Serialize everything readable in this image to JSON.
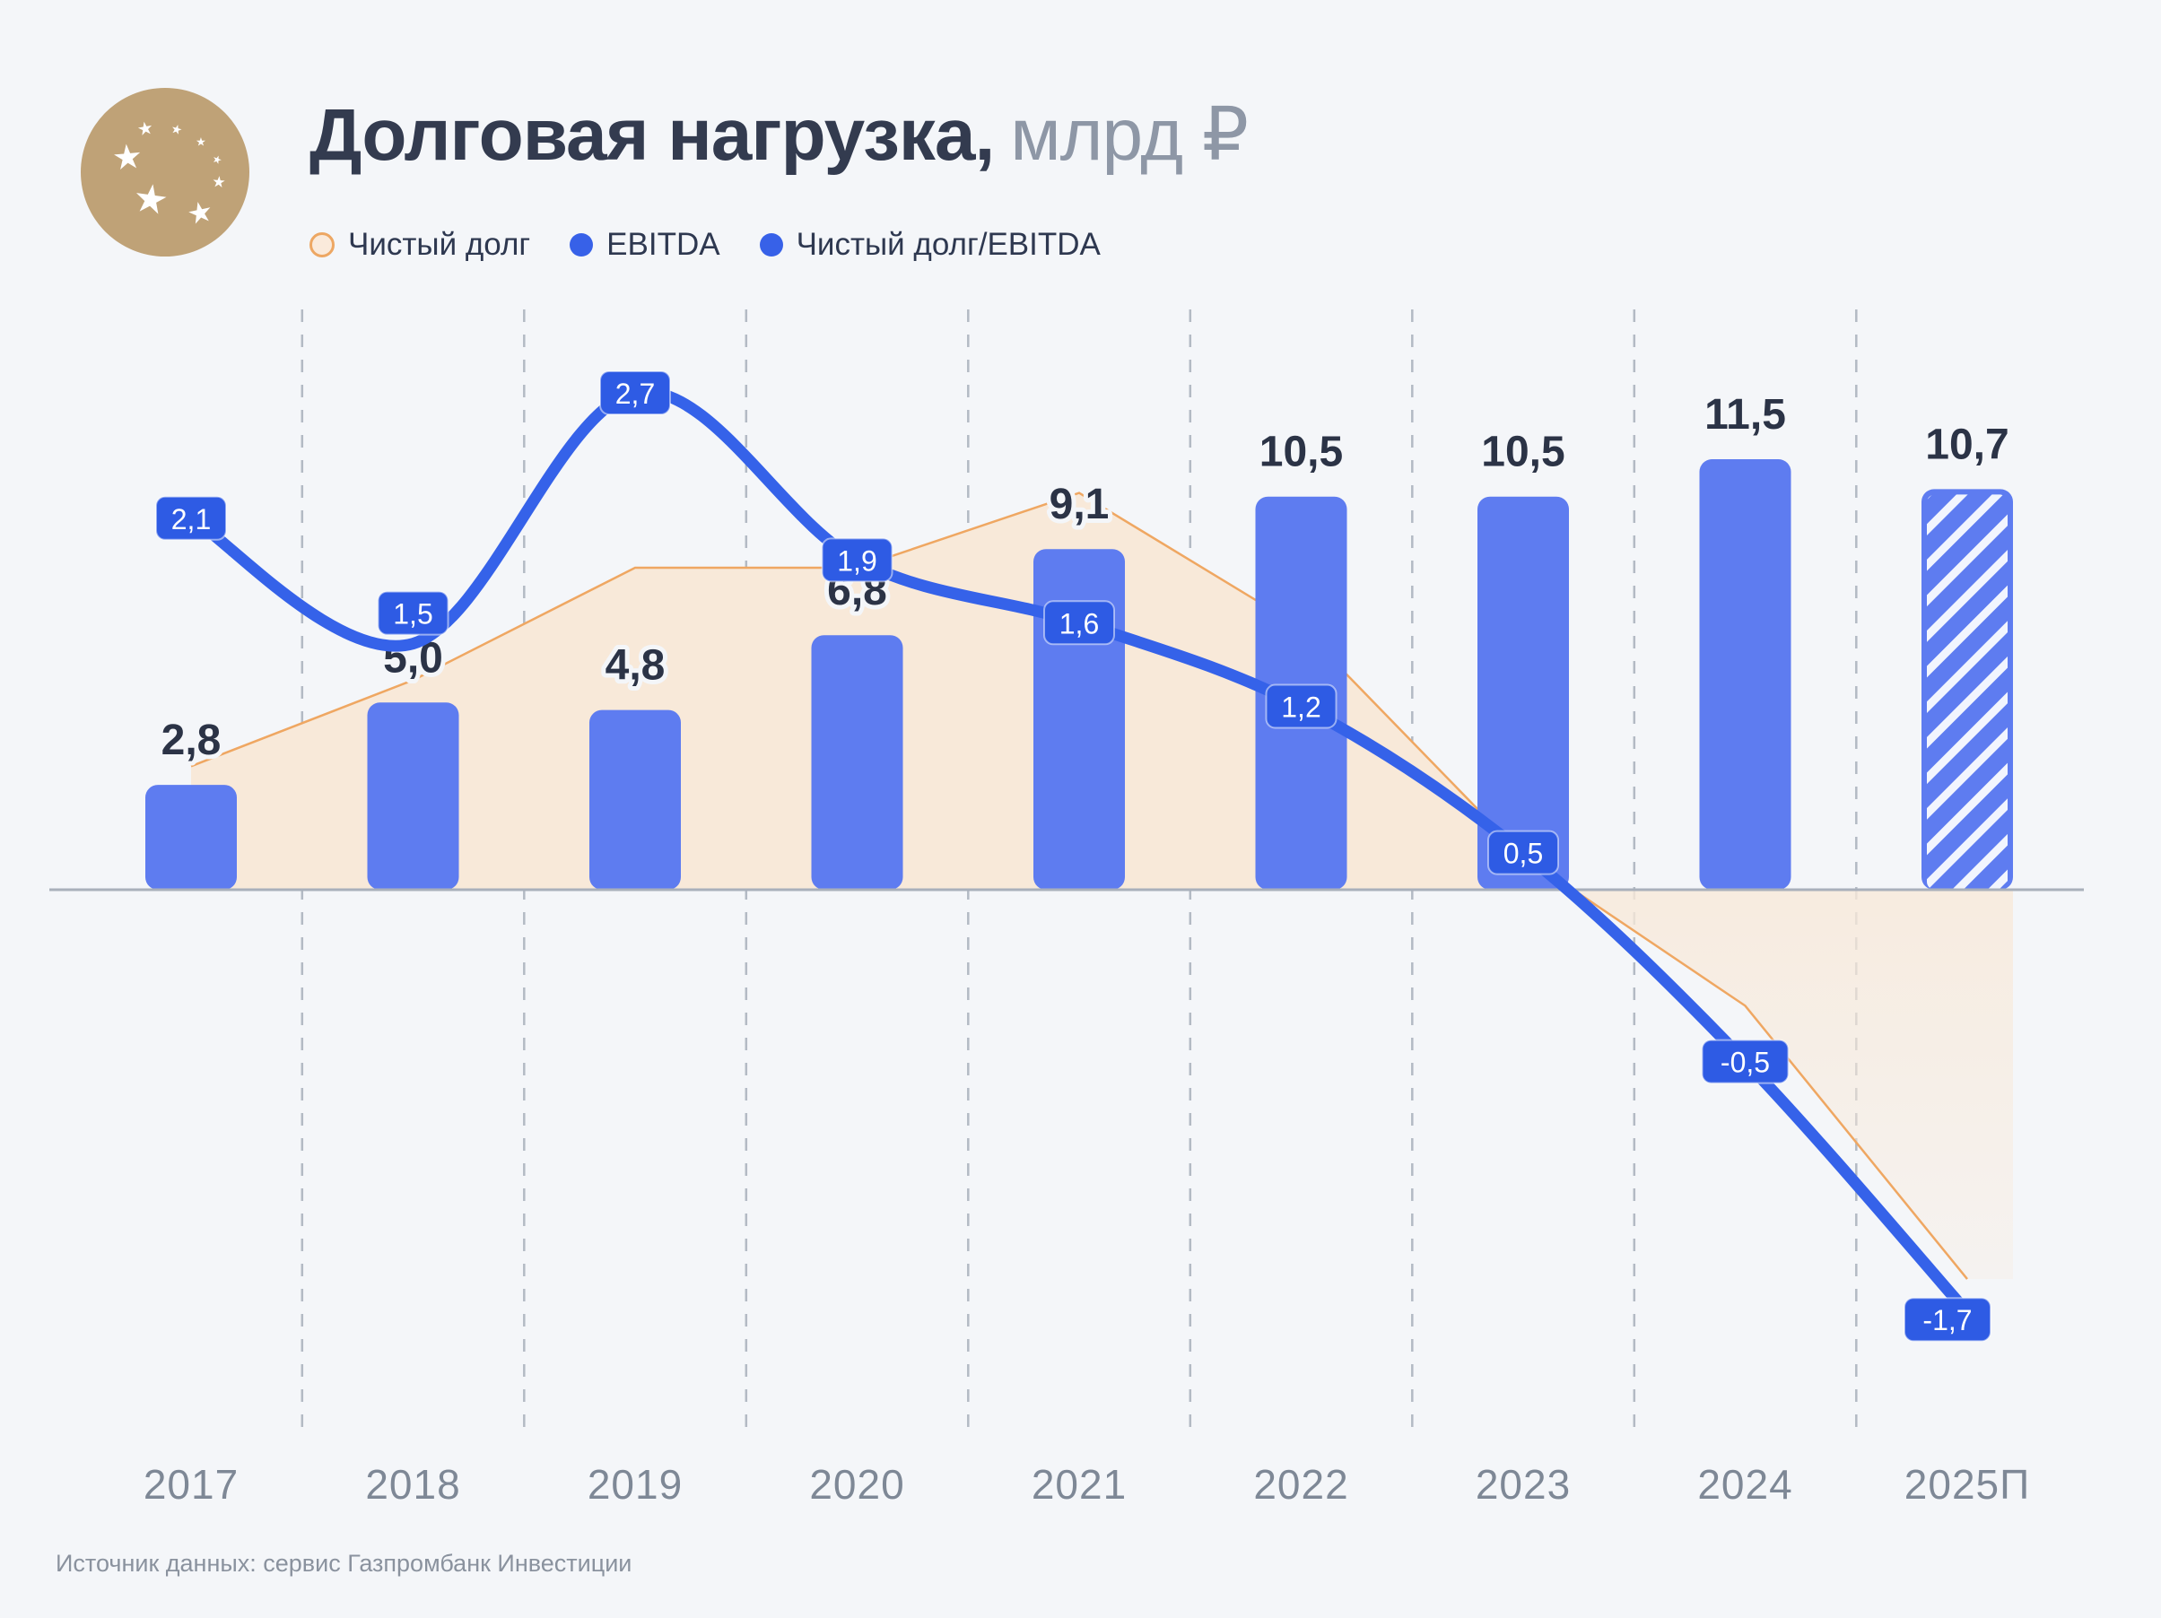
{
  "header": {
    "title": "Долговая нагрузка,",
    "title_unit": "млрд ₽"
  },
  "legend": {
    "items": [
      {
        "label": "Чистый долг",
        "marker": "area-circle"
      },
      {
        "label": "EBITDA",
        "marker": "blue-dot"
      },
      {
        "label": "Чистый долг/EBITDA",
        "marker": "blue-dot"
      }
    ]
  },
  "chart_data": {
    "type": "combo",
    "title": "Долговая нагрузка, млрд ₽",
    "categories": [
      "2017",
      "2018",
      "2019",
      "2020",
      "2021",
      "2022",
      "2023",
      "2024",
      "2025П"
    ],
    "forecast_category": "2025П",
    "grid": "vertical-dashed",
    "y_axis": {
      "visible": false,
      "zero_line": true
    },
    "series": [
      {
        "name": "EBITDA",
        "type": "bar",
        "unit": "млрд ₽",
        "values": [
          2.8,
          5.0,
          4.8,
          6.8,
          9.1,
          10.5,
          10.5,
          11.5,
          10.7
        ],
        "labels": [
          "2,8",
          "5,0",
          "4,8",
          "6,8",
          "9,1",
          "10,5",
          "10,5",
          "11,5",
          "10,7"
        ]
      },
      {
        "name": "Чистый долг",
        "type": "area",
        "unit": "млрд ₽",
        "values_estimated": [
          3.3,
          5.6,
          8.6,
          8.6,
          10.6,
          7.0,
          0.9,
          -3.1,
          -10.4
        ]
      },
      {
        "name": "Чистый долг/EBITDA",
        "type": "line",
        "unit": "x",
        "values": [
          2.1,
          1.5,
          2.7,
          1.9,
          1.6,
          1.2,
          0.5,
          -0.5,
          -1.7
        ],
        "labels": [
          "2,1",
          "1,5",
          "2,7",
          "1,9",
          "1,6",
          "1,2",
          "0,5",
          "-0,5",
          "-1,7"
        ]
      }
    ]
  },
  "colors": {
    "background": "#f4f6f9",
    "bar": "#5e7cf0",
    "line": "#3562e9",
    "badge": "#2e5be4",
    "badge_text": "#ffffff",
    "area_fill": "#f8e9d9",
    "area_stroke": "#efa762",
    "axis": "#a9b0bb",
    "grid": "#b3bac4",
    "title": "#333b4f",
    "title_unit": "#8e97a6",
    "bar_label": "#2b3346",
    "year_label": "#7e8896",
    "footer": "#8a929e",
    "logo": "#bfa277"
  },
  "footer": {
    "source": "Источник данных: сервис Газпромбанк Инвестиции"
  }
}
